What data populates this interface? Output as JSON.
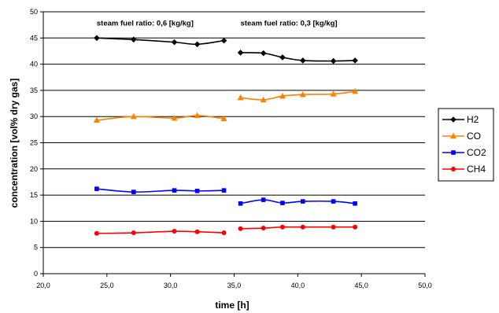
{
  "chart_data": {
    "type": "line",
    "xlabel": "time [h]",
    "ylabel": "concentration [vol% dry gas]",
    "xlim": [
      20,
      50
    ],
    "ylim": [
      0,
      50
    ],
    "x_ticks": [
      "20,0",
      "25,0",
      "30,0",
      "35,0",
      "40,0",
      "45,0",
      "50,0"
    ],
    "y_ticks": [
      "0",
      "5",
      "10",
      "15",
      "20",
      "25",
      "30",
      "35",
      "40",
      "45",
      "50"
    ],
    "grid": "horizontal",
    "legend_position": "right",
    "annotations": [
      {
        "text": "steam fuel ratio: 0,6 [kg/kg]",
        "x": 24.2,
        "y": 47.4
      },
      {
        "text": "steam fuel ratio: 0,3 [kg/kg]",
        "x": 35.5,
        "y": 47.4
      }
    ],
    "series": [
      {
        "name": "H2",
        "color": "#000000",
        "marker": "diamond",
        "segments": [
          {
            "x": [
              24.2,
              27.1,
              30.3,
              32.1,
              34.2
            ],
            "y": [
              45.0,
              44.7,
              44.2,
              43.8,
              44.5
            ]
          },
          {
            "x": [
              35.5,
              37.3,
              38.8,
              40.4,
              42.8,
              44.5
            ],
            "y": [
              42.2,
              42.1,
              41.3,
              40.7,
              40.6,
              40.7
            ]
          }
        ]
      },
      {
        "name": "CO",
        "color": "#ff8000",
        "marker": "triangle",
        "segments": [
          {
            "x": [
              24.2,
              27.1,
              30.3,
              32.1,
              34.2
            ],
            "y": [
              29.3,
              30.0,
              29.7,
              30.2,
              29.6
            ]
          },
          {
            "x": [
              35.5,
              37.3,
              38.8,
              40.4,
              42.8,
              44.5
            ],
            "y": [
              33.6,
              33.2,
              33.9,
              34.2,
              34.3,
              34.8
            ]
          }
        ]
      },
      {
        "name": "CO2",
        "color": "#0000ff",
        "marker": "square",
        "segments": [
          {
            "x": [
              24.2,
              27.1,
              30.3,
              32.1,
              34.2
            ],
            "y": [
              16.2,
              15.6,
              15.9,
              15.8,
              15.9
            ]
          },
          {
            "x": [
              35.5,
              37.3,
              38.8,
              40.4,
              42.8,
              44.5
            ],
            "y": [
              13.4,
              14.1,
              13.5,
              13.8,
              13.8,
              13.4
            ]
          }
        ]
      },
      {
        "name": "CH4",
        "color": "#ff0000",
        "marker": "circle",
        "segments": [
          {
            "x": [
              24.2,
              27.1,
              30.3,
              32.1,
              34.2
            ],
            "y": [
              7.7,
              7.8,
              8.1,
              8.0,
              7.8
            ]
          },
          {
            "x": [
              35.5,
              37.3,
              38.8,
              40.4,
              42.8,
              44.5
            ],
            "y": [
              8.6,
              8.7,
              8.9,
              8.9,
              8.9,
              8.9
            ]
          }
        ]
      }
    ]
  }
}
